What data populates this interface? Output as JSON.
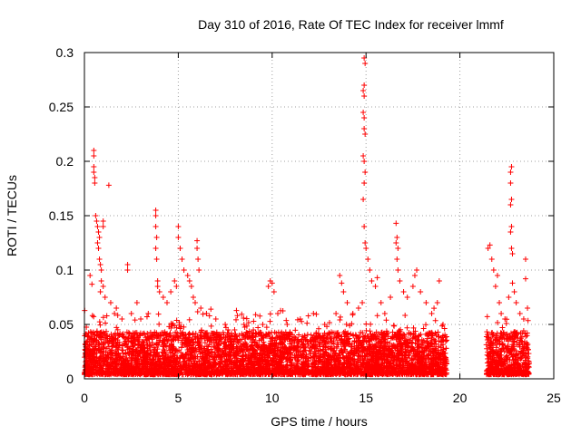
{
  "chart_data": {
    "type": "scatter",
    "title": "Day 310 of 2016, Rate Of TEC Index for receiver lmmf",
    "xlabel": "GPS time / hours",
    "ylabel": "ROTI / TECUs",
    "xlim": [
      0,
      25
    ],
    "ylim": [
      0,
      0.3
    ],
    "xticks": [
      0,
      5,
      10,
      15,
      20,
      25
    ],
    "yticks": [
      0,
      0.05,
      0.1,
      0.15,
      0.2,
      0.25,
      0.3
    ],
    "xtick_labels": [
      "0",
      "5",
      "10",
      "15",
      "20",
      "25"
    ],
    "ytick_labels": [
      "0",
      "0.05",
      "0.1",
      "0.15",
      "0.2",
      "0.25",
      "0.3"
    ],
    "grid": true,
    "marker": "+",
    "colors": {
      "points": "#ff0000",
      "grid": "#a0a0a0",
      "axes": "#000000"
    },
    "series": [
      {
        "data_segments": [
          {
            "x_range": [
              0.0,
              19.3
            ],
            "y_floor": 0.004,
            "y_typical": 0.03
          },
          {
            "x_range": [
              21.4,
              23.7
            ],
            "y_floor": 0.004,
            "y_typical": 0.03
          }
        ],
        "points": [
          [
            0.3,
            0.095
          ],
          [
            0.4,
            0.087
          ],
          [
            0.5,
            0.21
          ],
          [
            0.5,
            0.205
          ],
          [
            0.5,
            0.195
          ],
          [
            0.5,
            0.19
          ],
          [
            0.55,
            0.185
          ],
          [
            0.55,
            0.18
          ],
          [
            0.6,
            0.15
          ],
          [
            0.65,
            0.145
          ],
          [
            0.7,
            0.14
          ],
          [
            0.75,
            0.135
          ],
          [
            0.8,
            0.13
          ],
          [
            0.7,
            0.125
          ],
          [
            0.75,
            0.12
          ],
          [
            0.8,
            0.11
          ],
          [
            0.85,
            0.105
          ],
          [
            0.9,
            0.1
          ],
          [
            1.0,
            0.145
          ],
          [
            1.0,
            0.14
          ],
          [
            0.9,
            0.09
          ],
          [
            1.0,
            0.085
          ],
          [
            0.85,
            0.08
          ],
          [
            1.1,
            0.075
          ],
          [
            1.3,
            0.178
          ],
          [
            1.4,
            0.07
          ],
          [
            1.6,
            0.06
          ],
          [
            1.7,
            0.065
          ],
          [
            2.0,
            0.055
          ],
          [
            2.3,
            0.105
          ],
          [
            2.3,
            0.1
          ],
          [
            2.5,
            0.06
          ],
          [
            2.8,
            0.07
          ],
          [
            3.0,
            0.055
          ],
          [
            3.4,
            0.06
          ],
          [
            3.8,
            0.155
          ],
          [
            3.8,
            0.15
          ],
          [
            3.8,
            0.14
          ],
          [
            3.85,
            0.13
          ],
          [
            3.8,
            0.12
          ],
          [
            3.85,
            0.11
          ],
          [
            3.9,
            0.09
          ],
          [
            3.9,
            0.085
          ],
          [
            4.0,
            0.08
          ],
          [
            4.2,
            0.075
          ],
          [
            4.4,
            0.07
          ],
          [
            4.6,
            0.08
          ],
          [
            4.8,
            0.09
          ],
          [
            4.9,
            0.085
          ],
          [
            5.0,
            0.14
          ],
          [
            5.0,
            0.13
          ],
          [
            5.1,
            0.12
          ],
          [
            5.2,
            0.11
          ],
          [
            5.3,
            0.1
          ],
          [
            5.5,
            0.095
          ],
          [
            5.6,
            0.09
          ],
          [
            5.7,
            0.085
          ],
          [
            5.8,
            0.075
          ],
          [
            5.9,
            0.07
          ],
          [
            6.0,
            0.127
          ],
          [
            6.0,
            0.12
          ],
          [
            6.05,
            0.11
          ],
          [
            6.1,
            0.1
          ],
          [
            6.2,
            0.065
          ],
          [
            6.5,
            0.06
          ],
          [
            7.0,
            0.055
          ],
          [
            7.5,
            0.05
          ],
          [
            8.0,
            0.045
          ],
          [
            8.5,
            0.05
          ],
          [
            9.0,
            0.045
          ],
          [
            9.5,
            0.05
          ],
          [
            9.8,
            0.085
          ],
          [
            9.9,
            0.09
          ],
          [
            10.0,
            0.088
          ],
          [
            10.1,
            0.08
          ],
          [
            10.3,
            0.06
          ],
          [
            10.8,
            0.05
          ],
          [
            11.5,
            0.055
          ],
          [
            12.2,
            0.06
          ],
          [
            12.8,
            0.05
          ],
          [
            13.4,
            0.06
          ],
          [
            13.6,
            0.095
          ],
          [
            13.7,
            0.088
          ],
          [
            13.8,
            0.08
          ],
          [
            14.0,
            0.07
          ],
          [
            14.3,
            0.06
          ],
          [
            14.6,
            0.065
          ],
          [
            14.8,
            0.07
          ],
          [
            14.9,
            0.295
          ],
          [
            14.95,
            0.29
          ],
          [
            14.9,
            0.27
          ],
          [
            14.85,
            0.265
          ],
          [
            14.9,
            0.26
          ],
          [
            14.85,
            0.245
          ],
          [
            14.9,
            0.24
          ],
          [
            14.9,
            0.23
          ],
          [
            14.95,
            0.225
          ],
          [
            14.85,
            0.205
          ],
          [
            14.9,
            0.2
          ],
          [
            14.95,
            0.19
          ],
          [
            14.9,
            0.18
          ],
          [
            14.85,
            0.165
          ],
          [
            14.9,
            0.14
          ],
          [
            14.95,
            0.125
          ],
          [
            15.0,
            0.12
          ],
          [
            15.1,
            0.11
          ],
          [
            15.2,
            0.1
          ],
          [
            15.3,
            0.09
          ],
          [
            15.5,
            0.085
          ],
          [
            15.6,
            0.093
          ],
          [
            15.8,
            0.07
          ],
          [
            16.0,
            0.06
          ],
          [
            16.3,
            0.075
          ],
          [
            16.6,
            0.143
          ],
          [
            16.65,
            0.13
          ],
          [
            16.6,
            0.125
          ],
          [
            16.7,
            0.12
          ],
          [
            16.65,
            0.11
          ],
          [
            16.7,
            0.1
          ],
          [
            16.8,
            0.09
          ],
          [
            17.0,
            0.08
          ],
          [
            17.2,
            0.075
          ],
          [
            17.5,
            0.085
          ],
          [
            17.6,
            0.095
          ],
          [
            17.7,
            0.1
          ],
          [
            17.9,
            0.08
          ],
          [
            18.2,
            0.07
          ],
          [
            18.5,
            0.06
          ],
          [
            18.8,
            0.07
          ],
          [
            18.9,
            0.09
          ],
          [
            19.1,
            0.05
          ],
          [
            21.5,
            0.12
          ],
          [
            21.6,
            0.123
          ],
          [
            21.7,
            0.11
          ],
          [
            21.8,
            0.1
          ],
          [
            22.0,
            0.095
          ],
          [
            21.9,
            0.085
          ],
          [
            22.1,
            0.07
          ],
          [
            22.2,
            0.06
          ],
          [
            22.4,
            0.055
          ],
          [
            22.6,
            0.075
          ],
          [
            22.7,
            0.19
          ],
          [
            22.75,
            0.195
          ],
          [
            22.7,
            0.18
          ],
          [
            22.75,
            0.165
          ],
          [
            22.7,
            0.16
          ],
          [
            22.75,
            0.14
          ],
          [
            22.7,
            0.135
          ],
          [
            22.75,
            0.12
          ],
          [
            22.8,
            0.115
          ],
          [
            22.8,
            0.088
          ],
          [
            22.9,
            0.08
          ],
          [
            23.0,
            0.07
          ],
          [
            23.2,
            0.06
          ],
          [
            23.4,
            0.055
          ],
          [
            23.5,
            0.092
          ],
          [
            23.5,
            0.11
          ],
          [
            23.6,
            0.065
          ]
        ]
      }
    ]
  }
}
